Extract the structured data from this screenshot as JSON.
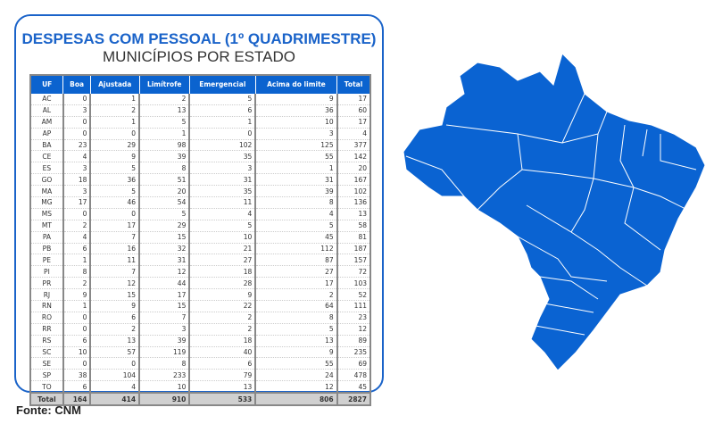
{
  "title": "DESPESAS COM PESSOAL (1º QUADRIMESTRE)",
  "subtitle": "MUNICÍPIOS POR ESTADO",
  "columns": [
    "UF",
    "Boa",
    "Ajustada",
    "Limítrofe",
    "Emergencial",
    "Acima do limite",
    "Total"
  ],
  "rows": [
    [
      "AC",
      0,
      1,
      2,
      5,
      9,
      17
    ],
    [
      "AL",
      3,
      2,
      13,
      6,
      36,
      60
    ],
    [
      "AM",
      0,
      1,
      5,
      1,
      10,
      17
    ],
    [
      "AP",
      0,
      0,
      1,
      0,
      3,
      4
    ],
    [
      "BA",
      23,
      29,
      98,
      102,
      125,
      377
    ],
    [
      "CE",
      4,
      9,
      39,
      35,
      55,
      142
    ],
    [
      "ES",
      3,
      5,
      8,
      3,
      1,
      20
    ],
    [
      "GO",
      18,
      36,
      51,
      31,
      31,
      167
    ],
    [
      "MA",
      3,
      5,
      20,
      35,
      39,
      102
    ],
    [
      "MG",
      17,
      46,
      54,
      11,
      8,
      136
    ],
    [
      "MS",
      0,
      0,
      5,
      4,
      4,
      13
    ],
    [
      "MT",
      2,
      17,
      29,
      5,
      5,
      58
    ],
    [
      "PA",
      4,
      7,
      15,
      10,
      45,
      81
    ],
    [
      "PB",
      6,
      16,
      32,
      21,
      112,
      187
    ],
    [
      "PE",
      1,
      11,
      31,
      27,
      87,
      157
    ],
    [
      "PI",
      8,
      7,
      12,
      18,
      27,
      72
    ],
    [
      "PR",
      2,
      12,
      44,
      28,
      17,
      103
    ],
    [
      "RJ",
      9,
      15,
      17,
      9,
      2,
      52
    ],
    [
      "RN",
      1,
      9,
      15,
      22,
      64,
      111
    ],
    [
      "RO",
      0,
      6,
      7,
      2,
      8,
      23
    ],
    [
      "RR",
      0,
      2,
      3,
      2,
      5,
      12
    ],
    [
      "RS",
      6,
      13,
      39,
      18,
      13,
      89
    ],
    [
      "SC",
      10,
      57,
      119,
      40,
      9,
      235
    ],
    [
      "SE",
      0,
      0,
      8,
      6,
      55,
      69
    ],
    [
      "SP",
      38,
      104,
      233,
      79,
      24,
      478
    ],
    [
      "TO",
      6,
      4,
      10,
      13,
      12,
      45
    ]
  ],
  "total": [
    "Total",
    164,
    414,
    910,
    533,
    806,
    2827
  ],
  "source": "Fonte: CNM",
  "map_color": "#0a63d2"
}
